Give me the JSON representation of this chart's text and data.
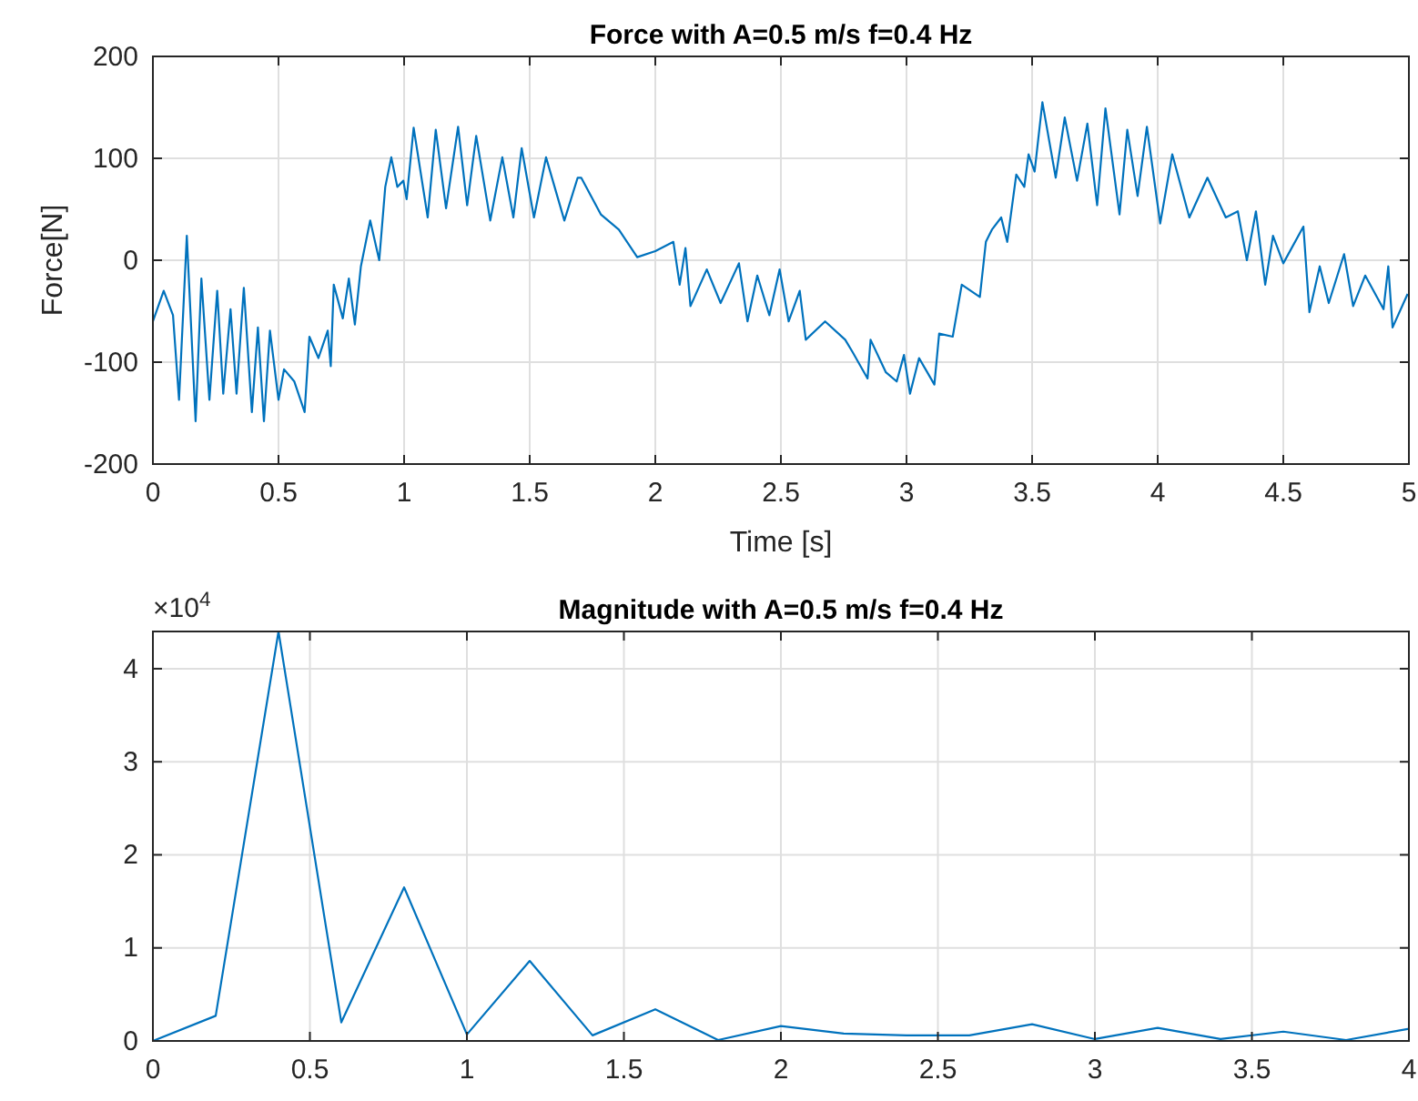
{
  "chart_data": [
    {
      "type": "line",
      "title": "Force with A=0.5 m/s f=0.4 Hz",
      "xlabel": "Time [s]",
      "ylabel": "Force[N]",
      "xlim": [
        0,
        5
      ],
      "ylim": [
        -200,
        200
      ],
      "xticks": [
        0,
        0.5,
        1,
        1.5,
        2,
        2.5,
        3,
        3.5,
        4,
        4.5,
        5
      ],
      "yticks": [
        -200,
        -100,
        0,
        100,
        200
      ],
      "grid": true,
      "line_style": "solid",
      "marker": "none",
      "series": [
        {
          "color": "#0072bd",
          "x": [
            0,
            0.043,
            0.08,
            0.104,
            0.135,
            0.17,
            0.193,
            0.225,
            0.256,
            0.28,
            0.309,
            0.333,
            0.362,
            0.394,
            0.418,
            0.442,
            0.466,
            0.5,
            0.522,
            0.563,
            0.604,
            0.623,
            0.659,
            0.696,
            0.708,
            0.72,
            0.756,
            0.78,
            0.804,
            0.828,
            0.865,
            0.901,
            0.925,
            0.949,
            0.973,
            0.997,
            1.01,
            1.038,
            1.094,
            1.126,
            1.167,
            1.215,
            1.251,
            1.287,
            1.343,
            1.391,
            1.435,
            1.468,
            1.517,
            1.565,
            1.638,
            1.691,
            1.705,
            1.783,
            1.855,
            1.928,
            2.0,
            2.072,
            2.097,
            2.12,
            2.14,
            2.205,
            2.26,
            2.333,
            2.367,
            2.406,
            2.454,
            2.495,
            2.531,
            2.575,
            2.599,
            2.676,
            2.756,
            2.785,
            2.845,
            2.857,
            2.918,
            2.961,
            2.99,
            3.014,
            3.05,
            3.111,
            3.13,
            3.184,
            3.22,
            3.292,
            3.316,
            3.34,
            3.377,
            3.401,
            3.437,
            3.469,
            3.486,
            3.51,
            3.541,
            3.594,
            3.63,
            3.679,
            3.72,
            3.759,
            3.792,
            3.848,
            3.879,
            3.92,
            3.957,
            4.01,
            4.058,
            4.126,
            4.198,
            4.271,
            4.319,
            4.355,
            4.391,
            4.428,
            4.459,
            4.5,
            4.58,
            4.604,
            4.645,
            4.681,
            4.742,
            4.778,
            4.826,
            4.899,
            4.918,
            4.935,
            4.995
          ],
          "values": [
            -60,
            -30,
            -54,
            -137,
            24,
            -158,
            -18,
            -137,
            -30,
            -131,
            -48,
            -131,
            -27,
            -149,
            -66,
            -158,
            -69,
            -137,
            -107,
            -119,
            -149,
            -75,
            -96,
            -69,
            -104,
            -24,
            -57,
            -18,
            -63,
            -6,
            39,
            0,
            72,
            101,
            72,
            78,
            60,
            130,
            42,
            128,
            51,
            131,
            54,
            122,
            39,
            101,
            42,
            110,
            42,
            101,
            39,
            81,
            81,
            45,
            30,
            3,
            9,
            18,
            -24,
            12,
            -45,
            -9,
            -42,
            -3,
            -60,
            -15,
            -54,
            -9,
            -60,
            -30,
            -78,
            -60,
            -78,
            -90,
            -116,
            -78,
            -110,
            -119,
            -93,
            -131,
            -96,
            -122,
            -72,
            -75,
            -24,
            -36,
            18,
            30,
            42,
            18,
            84,
            72,
            104,
            87,
            155,
            81,
            140,
            78,
            134,
            54,
            149,
            45,
            128,
            63,
            131,
            36,
            104,
            42,
            81,
            42,
            48,
            0,
            48,
            -24,
            24,
            -3,
            33,
            -51,
            -6,
            -42,
            6,
            -45,
            -15,
            -48,
            -6,
            -66,
            -33
          ]
        }
      ]
    },
    {
      "type": "line",
      "title": "Magnitude with A=0.5 m/s f=0.4 Hz",
      "annotations": [
        "×10$^{4}$"
      ],
      "xlim": [
        0,
        4
      ],
      "ylim": [
        0,
        4.4
      ],
      "xticks": [
        0,
        0.5,
        1,
        1.5,
        2,
        2.5,
        3,
        3.5,
        4
      ],
      "yticks": [
        0,
        1,
        2,
        3,
        4
      ],
      "grid": true,
      "line_style": "solid",
      "marker": "none",
      "series": [
        {
          "color": "#0072bd",
          "x": [
            0,
            0.2,
            0.4,
            0.6,
            0.8,
            1.0,
            1.2,
            1.4,
            1.6,
            1.8,
            2.0,
            2.2,
            2.4,
            2.6,
            2.8,
            3.0,
            3.2,
            3.4,
            3.6,
            3.8,
            4.0
          ],
          "values": [
            0,
            0.27,
            4.4,
            0.2,
            1.65,
            0.07,
            0.86,
            0.06,
            0.34,
            0.01,
            0.16,
            0.08,
            0.06,
            0.06,
            0.18,
            0.02,
            0.14,
            0.02,
            0.1,
            0.01,
            0.13
          ]
        }
      ]
    }
  ]
}
